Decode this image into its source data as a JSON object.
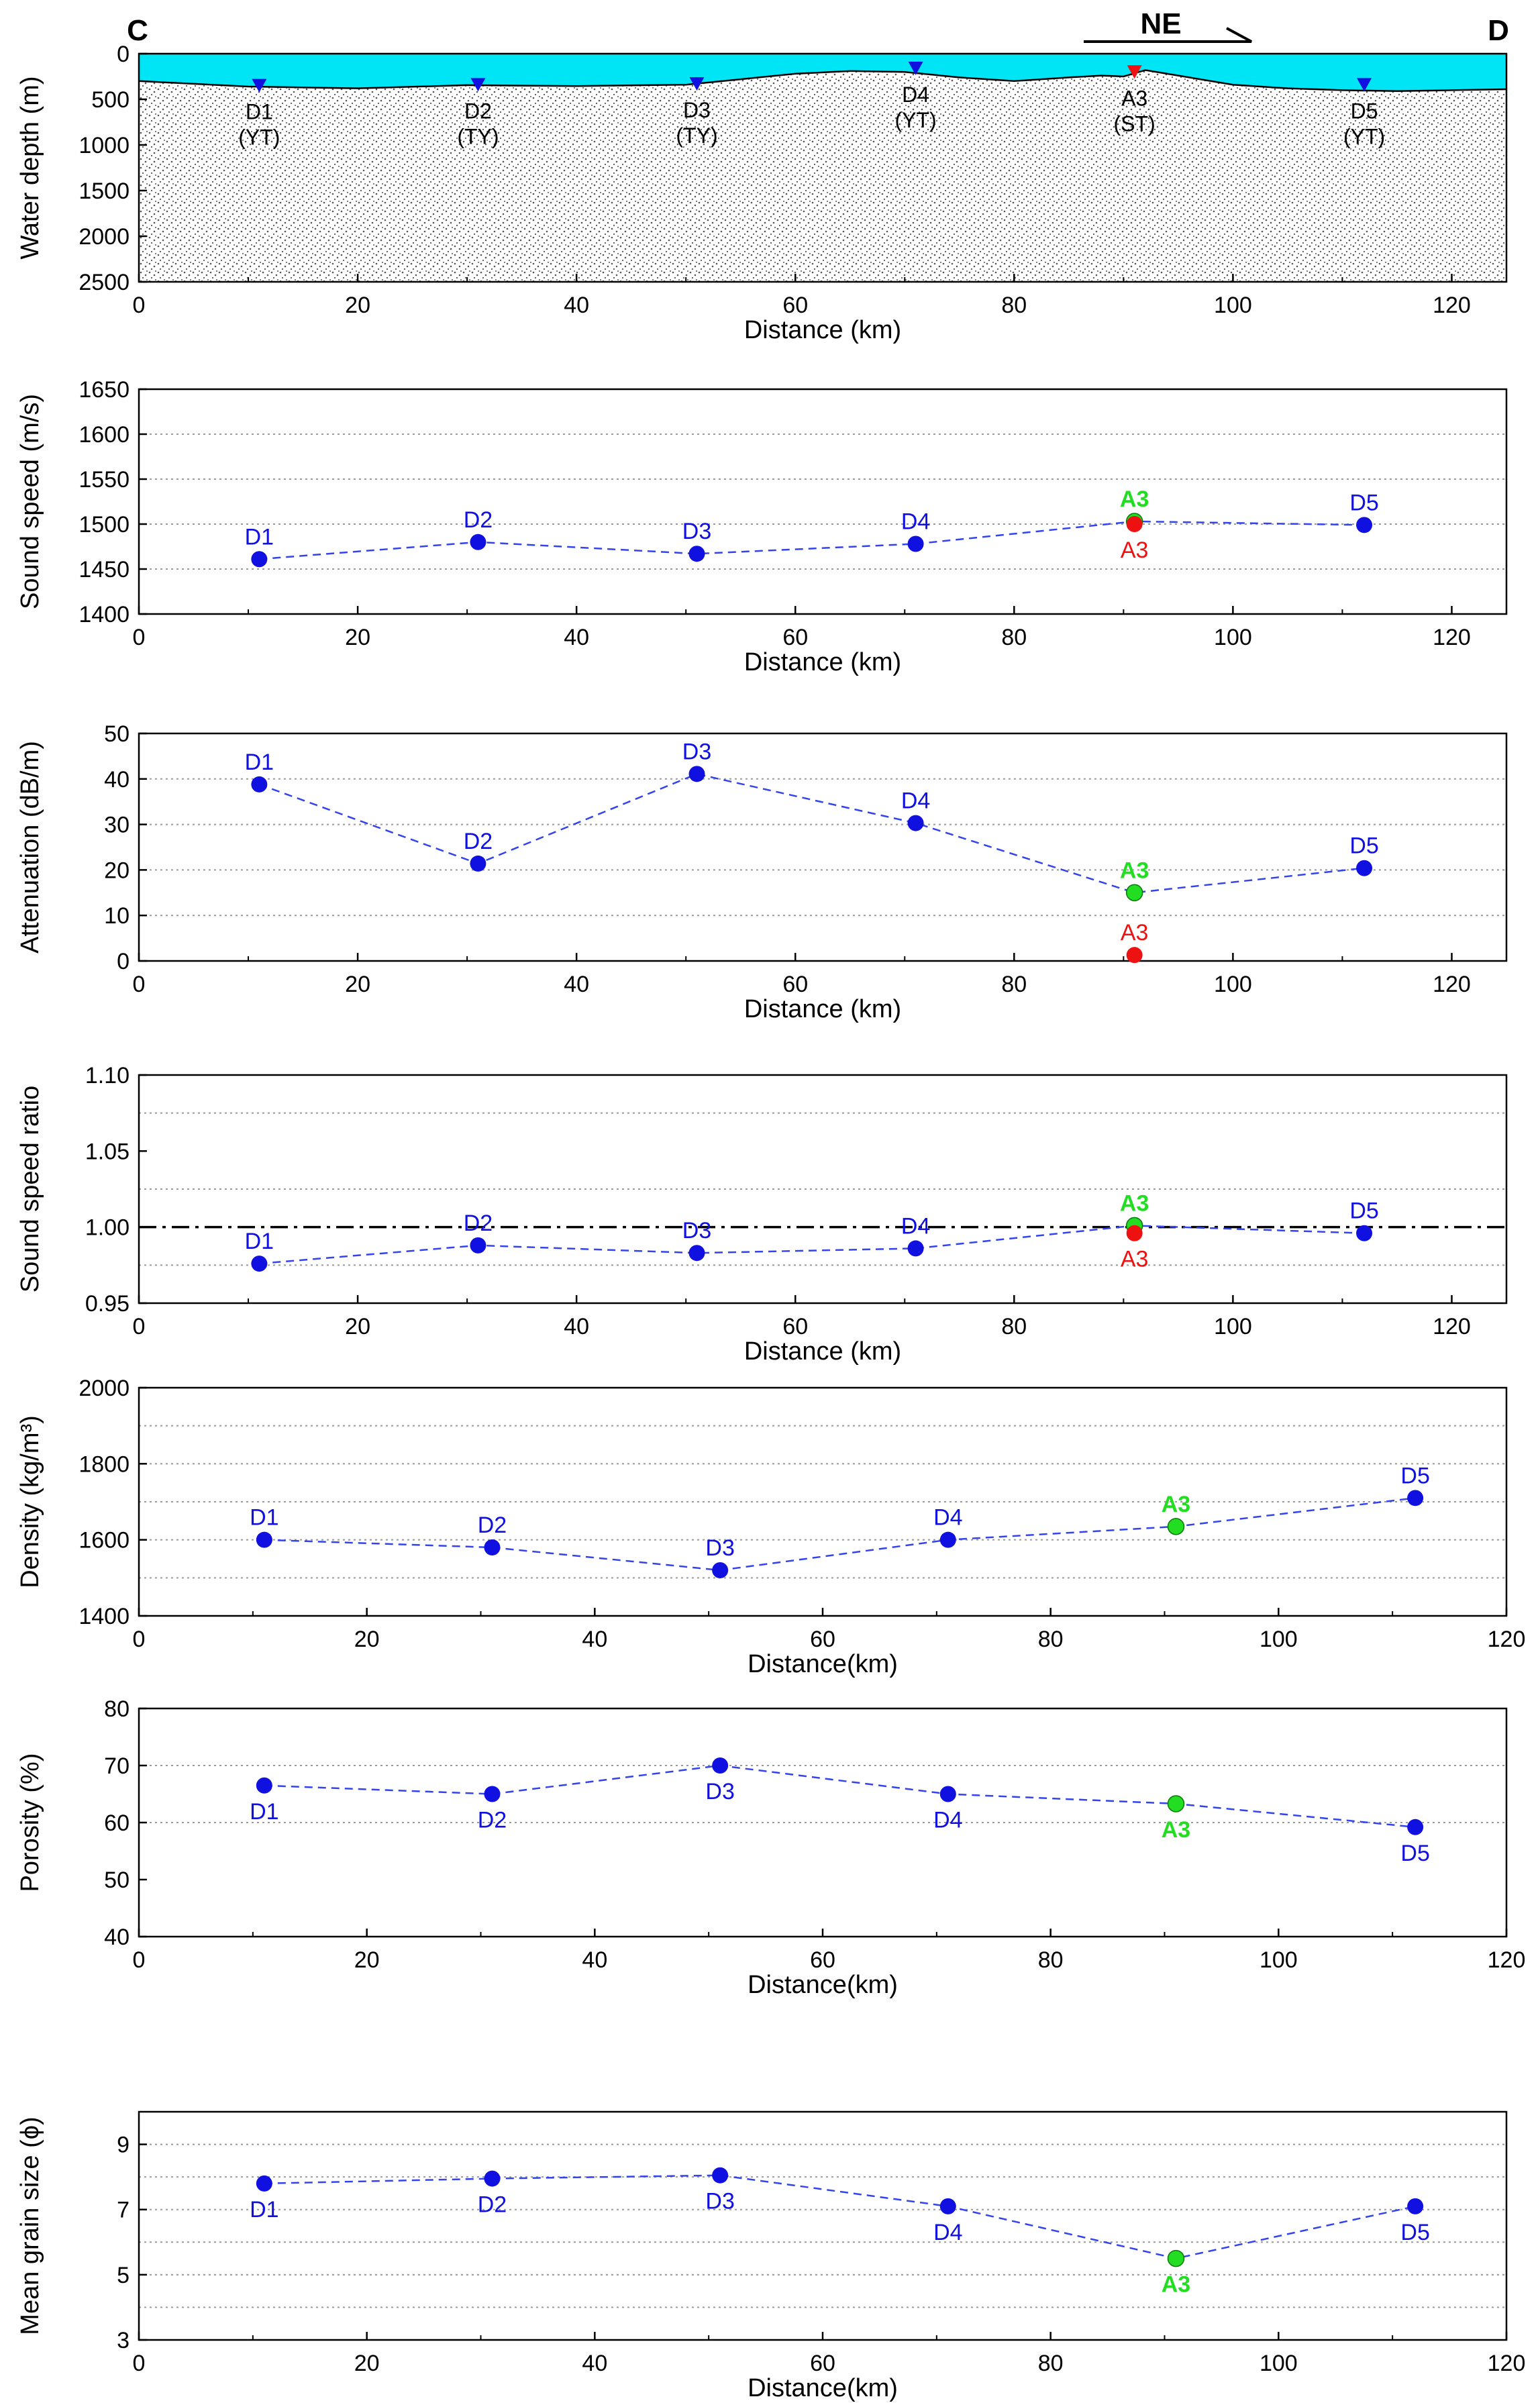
{
  "figure": {
    "corner_left": "C",
    "corner_right": "D",
    "direction_label": "NE"
  },
  "colors": {
    "water": "#00E5F5",
    "station": "#1010E0",
    "green": "#22DD22",
    "red": "#EE1111",
    "axis": "#000000",
    "grid": "#9a9a9a",
    "line": "#3344EE"
  },
  "chart_data": [
    {
      "id": "water",
      "type": "area",
      "ylabel": "Water depth (m)",
      "xlabel": "Distance (km)",
      "xlim": [
        0,
        125
      ],
      "ylim": [
        0,
        2500
      ],
      "xticks": [
        "0",
        "20",
        "40",
        "60",
        "80",
        "100",
        "120"
      ],
      "yticks": [
        "0",
        "500",
        "1000",
        "1500",
        "2000",
        "2500"
      ],
      "seafloor": {
        "x": [
          0,
          10,
          20,
          30,
          40,
          50,
          55,
          60,
          65,
          70,
          75,
          80,
          85,
          88,
          90,
          92,
          95,
          100,
          105,
          110,
          115,
          120,
          125
        ],
        "y": [
          300,
          360,
          380,
          345,
          355,
          340,
          280,
          220,
          190,
          200,
          260,
          300,
          260,
          240,
          250,
          180,
          240,
          340,
          380,
          400,
          410,
          400,
          390
        ]
      },
      "stations": [
        {
          "name": "D1",
          "sub": "(YT)",
          "x": 11,
          "y": 380,
          "color": "blue"
        },
        {
          "name": "D2",
          "sub": "(TY)",
          "x": 31,
          "y": 370,
          "color": "blue"
        },
        {
          "name": "D3",
          "sub": "(TY)",
          "x": 51,
          "y": 360,
          "color": "blue"
        },
        {
          "name": "D4",
          "sub": "(YT)",
          "x": 71,
          "y": 190,
          "color": "blue"
        },
        {
          "name": "A3",
          "sub": "(ST)",
          "x": 91,
          "y": 230,
          "color": "red"
        },
        {
          "name": "D5",
          "sub": "(YT)",
          "x": 112,
          "y": 370,
          "color": "blue"
        }
      ]
    },
    {
      "id": "speed",
      "type": "line",
      "ylabel": "Sound speed (m/s)",
      "xlabel": "Distance (km)",
      "xlim": [
        0,
        125
      ],
      "ylim": [
        1400,
        1650
      ],
      "xticks": [
        "0",
        "20",
        "40",
        "60",
        "80",
        "100",
        "120"
      ],
      "yticks": [
        "1400",
        "1450",
        "1500",
        "1550",
        "1600",
        "1650"
      ],
      "grid": [
        1450,
        1500,
        1550,
        1600
      ],
      "series": [
        {
          "name": "D-stations + A3",
          "points": [
            {
              "label": "D1",
              "x": 11,
              "y": 1461,
              "color": "blue",
              "lpos": "above"
            },
            {
              "label": "D2",
              "x": 31,
              "y": 1480,
              "color": "blue",
              "lpos": "above"
            },
            {
              "label": "D3",
              "x": 51,
              "y": 1467,
              "color": "blue",
              "lpos": "above"
            },
            {
              "label": "D4",
              "x": 71,
              "y": 1478,
              "color": "blue",
              "lpos": "above"
            },
            {
              "label": "A3",
              "x": 91,
              "y": 1503,
              "color": "green",
              "lpos": "above"
            },
            {
              "label": "D5",
              "x": 112,
              "y": 1499,
              "color": "blue",
              "lpos": "above"
            }
          ]
        }
      ],
      "extra": [
        {
          "label": "A3",
          "x": 91,
          "y": 1500,
          "color": "red",
          "lpos": "below"
        }
      ]
    },
    {
      "id": "atten",
      "type": "line",
      "ylabel": "Attenuation (dB/m)",
      "xlabel": "Distance (km)",
      "xlim": [
        0,
        125
      ],
      "ylim": [
        0,
        50
      ],
      "xticks": [
        "0",
        "20",
        "40",
        "60",
        "80",
        "100",
        "120"
      ],
      "yticks": [
        "0",
        "10",
        "20",
        "30",
        "40",
        "50"
      ],
      "grid": [
        10,
        20,
        30,
        40
      ],
      "series": [
        {
          "name": "D-stations + A3",
          "points": [
            {
              "label": "D1",
              "x": 11,
              "y": 38.8,
              "color": "blue",
              "lpos": "above"
            },
            {
              "label": "D2",
              "x": 31,
              "y": 21.4,
              "color": "blue",
              "lpos": "above"
            },
            {
              "label": "D3",
              "x": 51,
              "y": 41.1,
              "color": "blue",
              "lpos": "above"
            },
            {
              "label": "D4",
              "x": 71,
              "y": 30.3,
              "color": "blue",
              "lpos": "above"
            },
            {
              "label": "A3",
              "x": 91,
              "y": 15,
              "color": "green",
              "lpos": "above"
            },
            {
              "label": "D5",
              "x": 112,
              "y": 20.4,
              "color": "blue",
              "lpos": "above"
            }
          ]
        }
      ],
      "extra": [
        {
          "label": "A3",
          "x": 91,
          "y": 1.3,
          "color": "red",
          "lpos": "above"
        }
      ]
    },
    {
      "id": "ratio",
      "type": "line",
      "ylabel": "Sound speed ratio",
      "xlabel": "Distance (km)",
      "xlim": [
        0,
        125
      ],
      "ylim": [
        0.95,
        1.1
      ],
      "xticks": [
        "0",
        "20",
        "40",
        "60",
        "80",
        "100",
        "120"
      ],
      "yticks": [
        "0.95",
        "1.00",
        "1.05",
        "1.10"
      ],
      "grid": [
        0.975,
        1.025,
        1.075
      ],
      "refline": 1.0,
      "series": [
        {
          "name": "D-stations + A3",
          "points": [
            {
              "label": "D1",
              "x": 11,
              "y": 0.976,
              "color": "blue",
              "lpos": "above"
            },
            {
              "label": "D2",
              "x": 31,
              "y": 0.988,
              "color": "blue",
              "lpos": "above"
            },
            {
              "label": "D3",
              "x": 51,
              "y": 0.983,
              "color": "blue",
              "lpos": "above"
            },
            {
              "label": "D4",
              "x": 71,
              "y": 0.986,
              "color": "blue",
              "lpos": "above"
            },
            {
              "label": "A3",
              "x": 91,
              "y": 1.001,
              "color": "green",
              "lpos": "above"
            },
            {
              "label": "D5",
              "x": 112,
              "y": 0.996,
              "color": "blue",
              "lpos": "above"
            }
          ]
        }
      ],
      "extra": [
        {
          "label": "A3",
          "x": 91,
          "y": 0.996,
          "color": "red",
          "lpos": "below"
        }
      ]
    },
    {
      "id": "density",
      "type": "line",
      "ylabel": "Density (kg/m³)",
      "xlabel": "Distance(km)",
      "xlim": [
        0,
        120
      ],
      "ylim": [
        1400,
        2000
      ],
      "xticks": [
        "0",
        "20",
        "40",
        "60",
        "80",
        "100",
        "120"
      ],
      "yticks": [
        "1400",
        "1600",
        "1800",
        "2000"
      ],
      "grid": [
        1500,
        1600,
        1700,
        1800,
        1900
      ],
      "series": [
        {
          "name": "D-stations + A3",
          "points": [
            {
              "label": "D1",
              "x": 11,
              "y": 1600,
              "color": "blue",
              "lpos": "above"
            },
            {
              "label": "D2",
              "x": 31,
              "y": 1580,
              "color": "blue",
              "lpos": "above"
            },
            {
              "label": "D3",
              "x": 51,
              "y": 1520,
              "color": "blue",
              "lpos": "above"
            },
            {
              "label": "D4",
              "x": 71,
              "y": 1600,
              "color": "blue",
              "lpos": "above"
            },
            {
              "label": "A3",
              "x": 91,
              "y": 1635,
              "color": "green",
              "lpos": "above"
            },
            {
              "label": "D5",
              "x": 112,
              "y": 1710,
              "color": "blue",
              "lpos": "above"
            }
          ]
        }
      ]
    },
    {
      "id": "porosity",
      "type": "line",
      "ylabel": "Porosity (%)",
      "xlabel": "Distance(km)",
      "xlim": [
        0,
        120
      ],
      "ylim": [
        40,
        80
      ],
      "xticks": [
        "0",
        "20",
        "40",
        "60",
        "80",
        "100",
        "120"
      ],
      "yticks": [
        "40",
        "50",
        "60",
        "70",
        "80"
      ],
      "grid": [
        60,
        70
      ],
      "series": [
        {
          "name": "D-stations + A3",
          "points": [
            {
              "label": "D1",
              "x": 11,
              "y": 66.5,
              "color": "blue",
              "lpos": "below"
            },
            {
              "label": "D2",
              "x": 31,
              "y": 65,
              "color": "blue",
              "lpos": "below"
            },
            {
              "label": "D3",
              "x": 51,
              "y": 70,
              "color": "blue",
              "lpos": "below"
            },
            {
              "label": "D4",
              "x": 71,
              "y": 65,
              "color": "blue",
              "lpos": "below"
            },
            {
              "label": "A3",
              "x": 91,
              "y": 63.3,
              "color": "green",
              "lpos": "below"
            },
            {
              "label": "D5",
              "x": 112,
              "y": 59.2,
              "color": "blue",
              "lpos": "below"
            }
          ]
        }
      ]
    },
    {
      "id": "grain",
      "type": "line",
      "ylabel": "Mean grain size (ϕ)",
      "xlabel": "Distance(km)",
      "xlim": [
        0,
        120
      ],
      "ylim": [
        3,
        10
      ],
      "xticks": [
        "0",
        "20",
        "40",
        "60",
        "80",
        "100",
        "120"
      ],
      "yticks": [
        "3",
        "5",
        "7",
        "9"
      ],
      "grid": [
        4,
        5,
        6,
        7,
        8,
        9
      ],
      "series": [
        {
          "name": "D-stations + A3",
          "points": [
            {
              "label": "D1",
              "x": 11,
              "y": 7.8,
              "color": "blue",
              "lpos": "below"
            },
            {
              "label": "D2",
              "x": 31,
              "y": 7.95,
              "color": "blue",
              "lpos": "below"
            },
            {
              "label": "D3",
              "x": 51,
              "y": 8.05,
              "color": "blue",
              "lpos": "below"
            },
            {
              "label": "D4",
              "x": 71,
              "y": 7.1,
              "color": "blue",
              "lpos": "below"
            },
            {
              "label": "A3",
              "x": 91,
              "y": 5.5,
              "color": "green",
              "lpos": "below"
            },
            {
              "label": "D5",
              "x": 112,
              "y": 7.1,
              "color": "blue",
              "lpos": "below"
            }
          ]
        }
      ]
    }
  ]
}
